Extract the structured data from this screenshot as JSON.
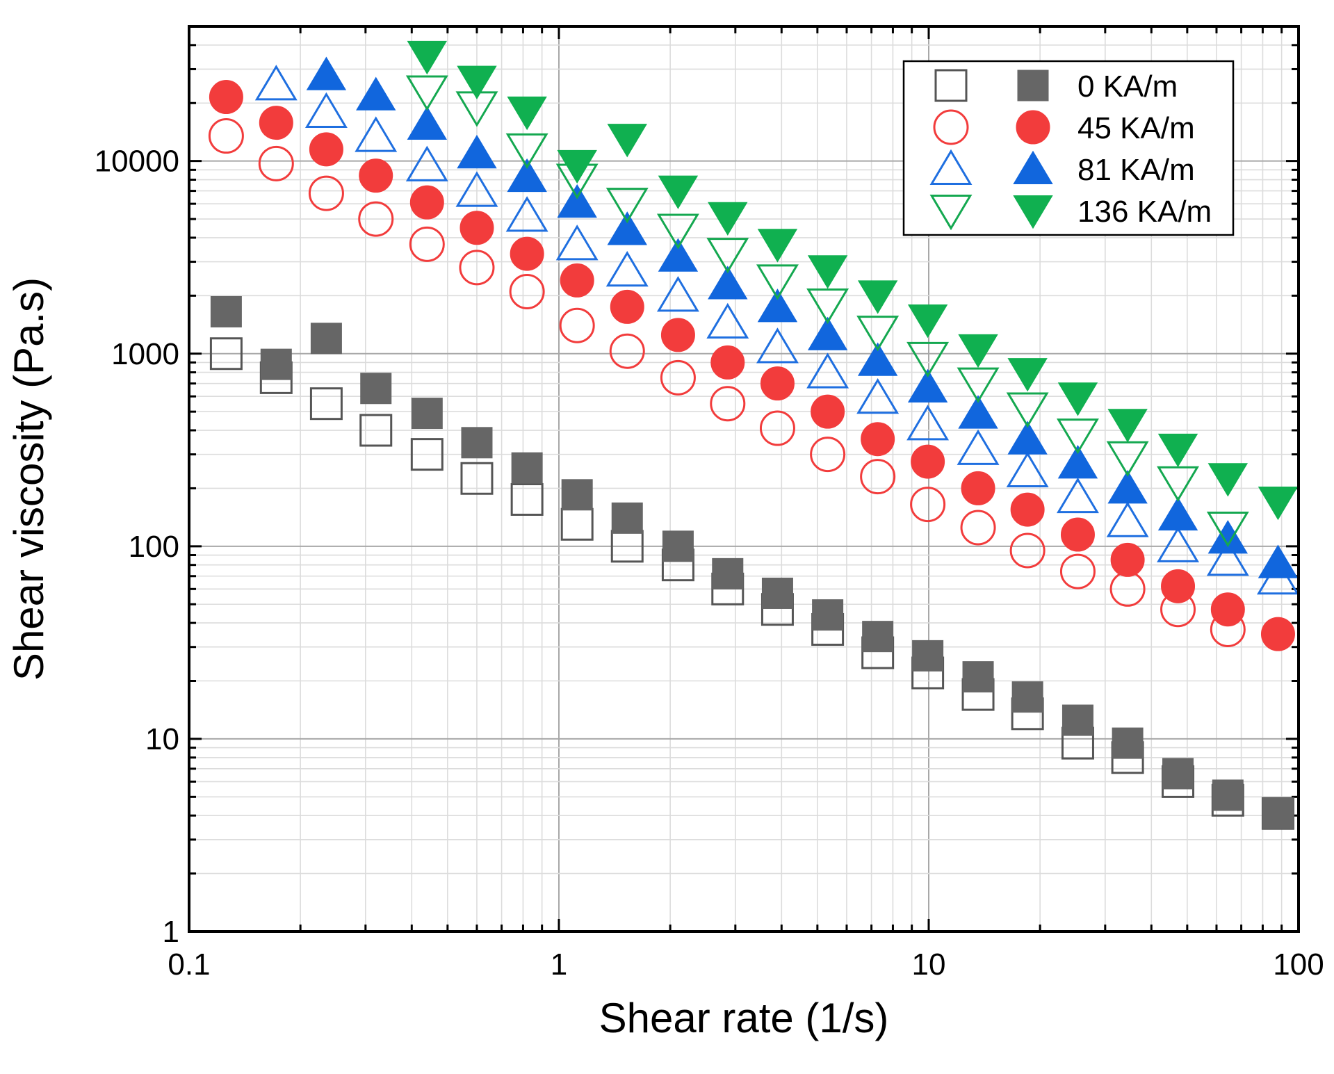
{
  "chart_data": {
    "type": "scatter",
    "xscale": "log",
    "yscale": "log",
    "xlim": [
      0.1,
      100
    ],
    "ylim": [
      1,
      50000
    ],
    "xlabel": "Shear rate (1/s)",
    "ylabel": "Shear viscosity (Pa.s)",
    "grid": true,
    "legend_position": "top-right",
    "x_ticks": [
      {
        "value": 0.1,
        "label": "0.1"
      },
      {
        "value": 1,
        "label": "1"
      },
      {
        "value": 10,
        "label": "10"
      },
      {
        "value": 100,
        "label": "100"
      }
    ],
    "y_ticks": [
      {
        "value": 1,
        "label": "1"
      },
      {
        "value": 10,
        "label": "10"
      },
      {
        "value": 100,
        "label": "100"
      },
      {
        "value": 1000,
        "label": "1000"
      },
      {
        "value": 10000,
        "label": "10000"
      }
    ],
    "x": [
      0.126,
      0.172,
      0.235,
      0.32,
      0.44,
      0.6,
      0.82,
      1.12,
      1.53,
      2.1,
      2.86,
      3.9,
      5.33,
      7.28,
      9.94,
      13.6,
      18.5,
      25.3,
      34.5,
      47.2,
      64.4,
      88
    ],
    "series": [
      {
        "name": "0 KA/m (open)",
        "legend_group": "0 KA/m",
        "marker": "square",
        "filled": false,
        "color": "#555555",
        "x": [
          0.126,
          0.172,
          0.235,
          0.32,
          0.44,
          0.6,
          0.82,
          1.12,
          1.53,
          2.1,
          2.86,
          3.9,
          5.33,
          7.28,
          9.94,
          13.6,
          18.5,
          25.3,
          34.5,
          47.2,
          64.4,
          88
        ],
        "values": [
          1000,
          750,
          550,
          400,
          300,
          225,
          175,
          130,
          100,
          80,
          60,
          47,
          37,
          28,
          22,
          17,
          13.5,
          9.5,
          8,
          6,
          4.8,
          4.1
        ]
      },
      {
        "name": "0 KA/m (filled)",
        "legend_group": "0 KA/m",
        "marker": "square",
        "filled": true,
        "color": "#666666",
        "x": [
          0.126,
          0.172,
          0.235,
          0.32,
          0.44,
          0.6,
          0.82,
          1.12,
          1.53,
          2.1,
          2.86,
          3.9,
          5.33,
          7.28,
          9.94,
          13.6,
          18.5,
          25.3,
          34.5,
          47.2,
          64.4,
          88
        ],
        "values": [
          1650,
          880,
          1200,
          660,
          490,
          345,
          255,
          185,
          140,
          100,
          72,
          57,
          44,
          34,
          27,
          21,
          16.5,
          12.5,
          9.5,
          6.6,
          5.1,
          4.1
        ]
      },
      {
        "name": "45 KA/m (open)",
        "legend_group": "45 KA/m",
        "marker": "circle",
        "filled": false,
        "color": "#f23c3c",
        "x": [
          0.126,
          0.172,
          0.235,
          0.32,
          0.44,
          0.6,
          0.82,
          1.12,
          1.53,
          2.1,
          2.86,
          3.9,
          5.33,
          7.28,
          9.94,
          13.6,
          18.5,
          25.3,
          34.5,
          47.2,
          64.4
        ],
        "values": [
          13500,
          9700,
          6800,
          5000,
          3700,
          2800,
          2100,
          1400,
          1030,
          750,
          550,
          410,
          300,
          230,
          165,
          125,
          95,
          74,
          60,
          47,
          37
        ]
      },
      {
        "name": "45 KA/m (filled)",
        "legend_group": "45 KA/m",
        "marker": "circle",
        "filled": true,
        "color": "#f23c3c",
        "x": [
          0.126,
          0.172,
          0.235,
          0.32,
          0.44,
          0.6,
          0.82,
          1.12,
          1.53,
          2.1,
          2.86,
          3.9,
          5.33,
          7.28,
          9.94,
          13.6,
          18.5,
          25.3,
          34.5,
          47.2,
          64.4,
          88
        ],
        "values": [
          21500,
          15800,
          11500,
          8400,
          6100,
          4500,
          3300,
          2400,
          1750,
          1250,
          900,
          700,
          500,
          360,
          275,
          200,
          155,
          115,
          85,
          62,
          47,
          35
        ]
      },
      {
        "name": "81 KA/m (open)",
        "legend_group": "81 KA/m",
        "marker": "triangle-up",
        "filled": false,
        "color": "#1f6fe0",
        "x": [
          0.172,
          0.235,
          0.32,
          0.44,
          0.6,
          0.82,
          1.12,
          1.53,
          2.1,
          2.86,
          3.9,
          5.33,
          7.28,
          9.94,
          13.6,
          18.5,
          25.3,
          34.5,
          47.2,
          64.4,
          88
        ],
        "values": [
          25000,
          18000,
          13500,
          9500,
          7000,
          5200,
          3700,
          2700,
          2000,
          1450,
          1080,
          800,
          590,
          430,
          320,
          245,
          180,
          135,
          100,
          85,
          68
        ]
      },
      {
        "name": "81 KA/m (filled)",
        "legend_group": "81 KA/m",
        "marker": "triangle-up",
        "filled": true,
        "color": "#1166dd",
        "x": [
          0.235,
          0.32,
          0.44,
          0.6,
          0.82,
          1.12,
          1.53,
          2.1,
          2.86,
          3.9,
          5.33,
          7.28,
          9.94,
          13.6,
          18.5,
          25.3,
          34.5,
          47.2,
          64.4,
          88
        ],
        "values": [
          28000,
          22000,
          15500,
          11000,
          8300,
          6100,
          4400,
          3200,
          2300,
          1750,
          1250,
          920,
          670,
          490,
          360,
          270,
          200,
          145,
          110,
          82
        ]
      },
      {
        "name": "136 KA/m (open)",
        "legend_group": "136 KA/m",
        "marker": "triangle-down",
        "filled": false,
        "color": "#14a850",
        "x": [
          0.44,
          0.6,
          0.82,
          1.12,
          1.53,
          2.1,
          2.86,
          3.9,
          5.33,
          7.28,
          9.94,
          13.6,
          18.5,
          25.3,
          34.5,
          47.2,
          64.4
        ],
        "values": [
          23000,
          19000,
          11500,
          8000,
          6000,
          4400,
          3300,
          2400,
          1800,
          1300,
          950,
          700,
          520,
          380,
          290,
          215,
          125
        ]
      },
      {
        "name": "136 KA/m (filled)",
        "legend_group": "136 KA/m",
        "marker": "triangle-down",
        "filled": true,
        "color": "#10b050",
        "x": [
          0.44,
          0.6,
          0.82,
          1.12,
          1.53,
          2.1,
          2.86,
          3.9,
          5.33,
          7.28,
          9.94,
          13.6,
          18.5,
          25.3,
          34.5,
          47.2,
          64.4,
          88
        ],
        "values": [
          35000,
          26000,
          18000,
          9500,
          13000,
          7000,
          5100,
          3700,
          2700,
          2000,
          1500,
          1050,
          790,
          590,
          430,
          320,
          225,
          170
        ]
      }
    ],
    "legend": [
      {
        "label": "0 KA/m",
        "open_index": 0,
        "filled_index": 1
      },
      {
        "label": "45 KA/m",
        "open_index": 2,
        "filled_index": 3
      },
      {
        "label": "81 KA/m",
        "open_index": 4,
        "filled_index": 5
      },
      {
        "label": "136 KA/m",
        "open_index": 6,
        "filled_index": 7
      }
    ]
  }
}
